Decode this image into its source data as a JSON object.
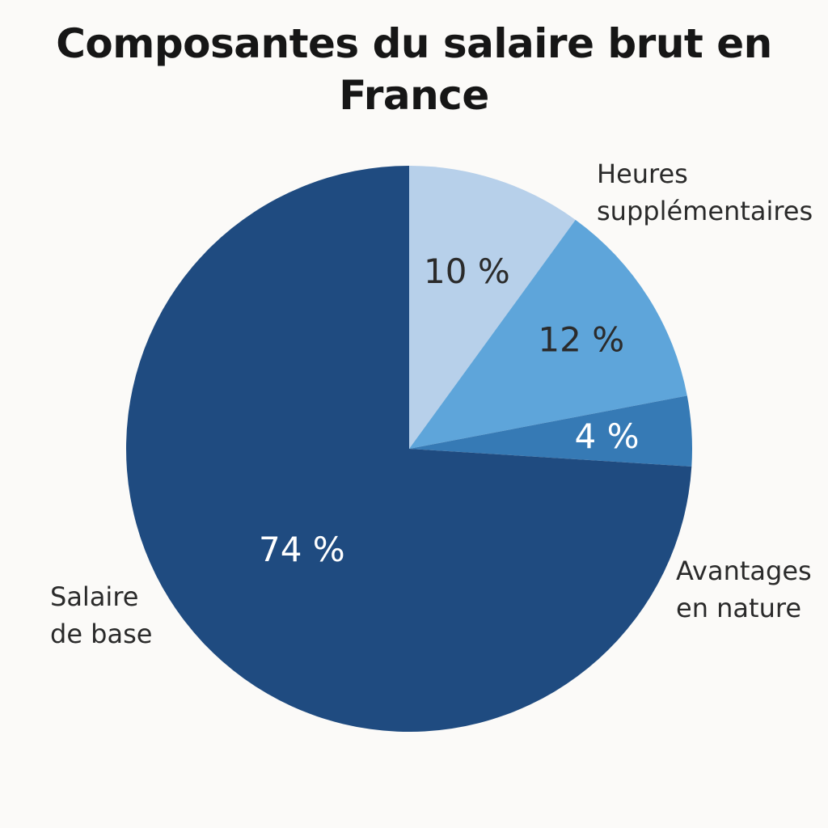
{
  "chart_data": {
    "type": "pie",
    "title": "Composantes du salaire brut en France",
    "title_lines": [
      "Composantes du salaire brut en",
      "France"
    ],
    "slices": [
      {
        "name": "Heures supplémentaires",
        "label_lines": [
          "Heures",
          "supplémentaires"
        ],
        "value": 10,
        "value_label": "10 %",
        "color": "#b7d0ea",
        "text_color": "#2b2b2b"
      },
      {
        "name": "",
        "label_lines": [],
        "value": 12,
        "value_label": "12 %",
        "color": "#5ea5da",
        "text_color": "#2b2b2b"
      },
      {
        "name": "Avantages en nature",
        "label_lines": [
          "Avantages",
          "en nature"
        ],
        "value": 4,
        "value_label": "4 %",
        "color": "#367ab5",
        "text_color": "#ffffff"
      },
      {
        "name": "Salaire de base",
        "label_lines": [
          "Salaire",
          "de base"
        ],
        "value": 74,
        "value_label": "74 %",
        "color": "#1f4b80",
        "text_color": "#ffffff"
      }
    ],
    "start_angle": "12 o'clock",
    "direction": "clockwise",
    "legend": "none",
    "grid": false
  }
}
